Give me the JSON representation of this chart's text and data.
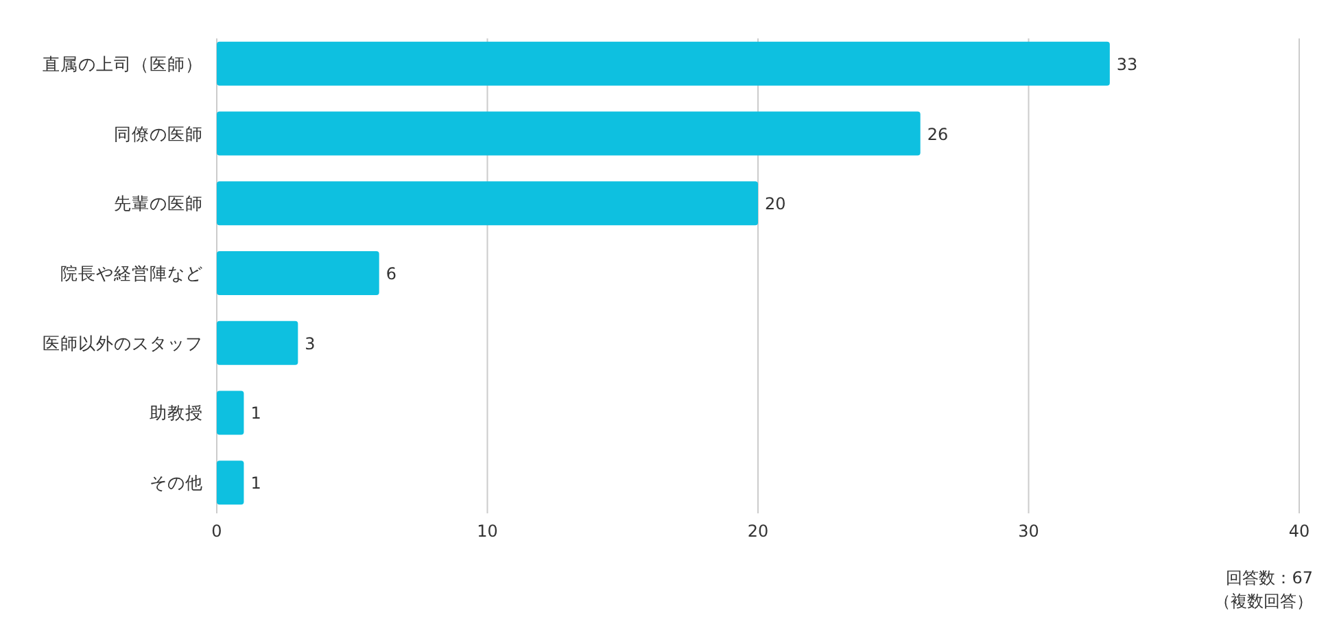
{
  "chart_data": {
    "type": "bar",
    "orientation": "horizontal",
    "categories": [
      "直属の上司（医師）",
      "同僚の医師",
      "先輩の医師",
      "院長や経営陣など",
      "医師以外のスタッフ",
      "助教授",
      "その他"
    ],
    "values": [
      33,
      26,
      20,
      6,
      3,
      1,
      1
    ],
    "color": "#0ec0e0",
    "xlim": [
      0,
      40
    ],
    "xticks": [
      0,
      10,
      20,
      30,
      40
    ],
    "grid": "x",
    "data_labels": true,
    "annotations": [
      "回答数：67",
      "（複数回答）"
    ]
  }
}
